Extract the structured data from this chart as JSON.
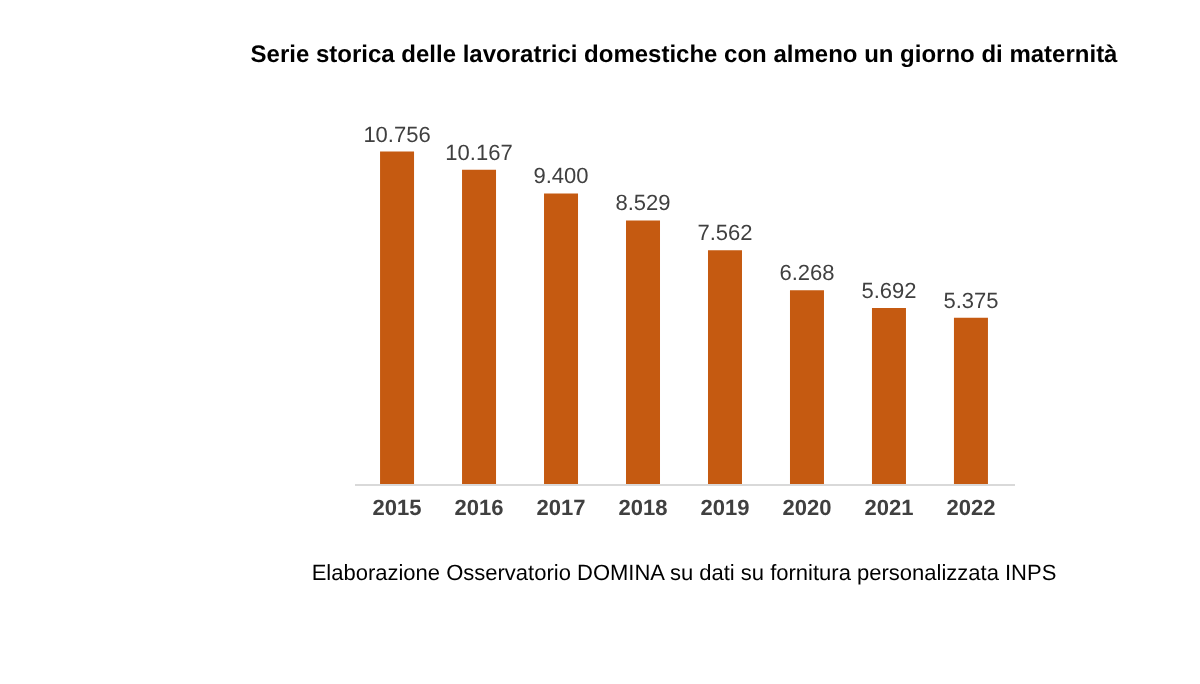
{
  "chart_data": {
    "type": "bar",
    "title": "Serie storica delle lavoratrici domestiche con almeno un giorno di maternità",
    "categories": [
      "2015",
      "2016",
      "2017",
      "2018",
      "2019",
      "2020",
      "2021",
      "2022"
    ],
    "values": [
      10756,
      10167,
      9400,
      8529,
      7562,
      6268,
      5692,
      5375
    ],
    "value_labels": [
      "10.756",
      "10.167",
      "9.400",
      "8.529",
      "7.562",
      "6.268",
      "5.692",
      "5.375"
    ],
    "color": "#c55a11",
    "grid": false,
    "annotations": [
      "Elaborazione Osservatorio DOMINA su dati su fornitura personalizzata INPS"
    ]
  }
}
